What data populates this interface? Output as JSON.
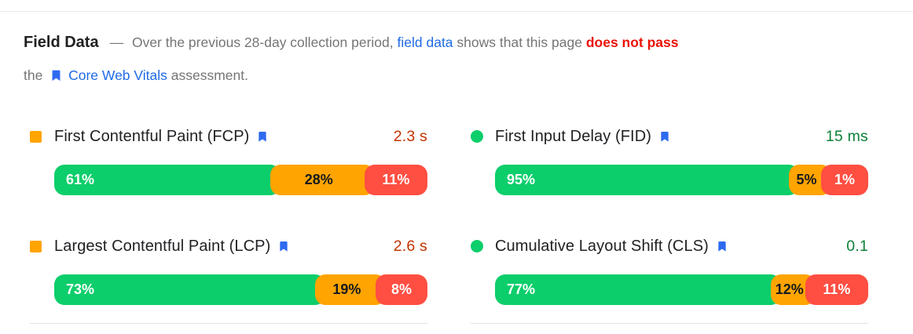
{
  "header": {
    "title": "Field Data",
    "dash": "—",
    "lead": "Over the previous 28-day collection period,",
    "link_field_data": "field data",
    "middle": "shows that this page",
    "fail": "does not pass",
    "the": "the",
    "link_cwv": "Core Web Vitals",
    "tail": "assessment."
  },
  "colors": {
    "good": "#0cce6b",
    "needs_improvement": "#ffa400",
    "poor": "#ff4e42",
    "link_blue": "#1f6ae5",
    "bookmark_blue": "#2e6bf0",
    "fail_red": "#ea1309",
    "value_orange": "#c33300",
    "value_green": "#0e8038"
  },
  "metrics": [
    {
      "id": "fcp",
      "label": "First Contentful Paint (FCP)",
      "icon": "orange-square",
      "bookmark": false,
      "value": "2.3 s",
      "value_color": "orange",
      "pcts": [
        61,
        28,
        11
      ],
      "pct_labels": [
        "61%",
        "28%",
        "11%"
      ]
    },
    {
      "id": "fid",
      "label": "First Input Delay (FID)",
      "icon": "green-circle",
      "bookmark": true,
      "value": "15 ms",
      "value_color": "green",
      "pcts": [
        95,
        5,
        1
      ],
      "pct_labels": [
        "95%",
        "5%",
        "1%"
      ]
    },
    {
      "id": "lcp",
      "label": "Largest Contentful Paint (LCP)",
      "icon": "orange-square",
      "bookmark": true,
      "value": "2.6 s",
      "value_color": "orange",
      "pcts": [
        73,
        19,
        8
      ],
      "pct_labels": [
        "73%",
        "19%",
        "8%"
      ]
    },
    {
      "id": "cls",
      "label": "Cumulative Layout Shift (CLS)",
      "icon": "green-circle",
      "bookmark": true,
      "value": "0.1",
      "value_color": "green",
      "pcts": [
        77,
        12,
        11
      ],
      "pct_labels": [
        "77%",
        "12%",
        "11%"
      ]
    }
  ],
  "chart_data": {
    "type": "bar",
    "subtype": "horizontal-stacked-distribution",
    "title": "Field Data",
    "categories": [
      "First Contentful Paint (FCP)",
      "First Input Delay (FID)",
      "Largest Contentful Paint (LCP)",
      "Cumulative Layout Shift (CLS)"
    ],
    "metric_values": [
      "2.3 s",
      "15 ms",
      "2.6 s",
      "0.1"
    ],
    "series": [
      {
        "name": "good",
        "color": "#0cce6b",
        "values": [
          61,
          95,
          73,
          77
        ]
      },
      {
        "name": "needs_improvement",
        "color": "#ffa400",
        "values": [
          28,
          5,
          19,
          12
        ]
      },
      {
        "name": "poor",
        "color": "#ff4e42",
        "values": [
          11,
          1,
          8,
          11
        ]
      }
    ],
    "xlim": [
      0,
      100
    ]
  }
}
